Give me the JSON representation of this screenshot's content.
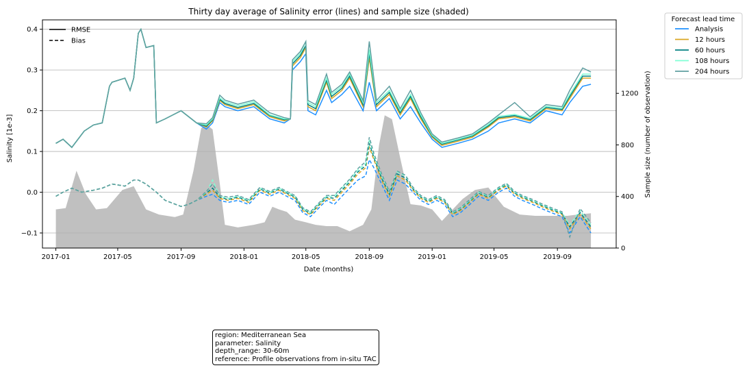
{
  "chart_data": {
    "type": "line",
    "title": "Thirty day average of Salinity error (lines) and sample size (shaded)",
    "xlabel": "Date (months)",
    "ylabel": "Salinity [1e-3]",
    "y2label": "Sample size (number of observation)",
    "xlim": [
      "2016-12-06",
      "2019-12-24"
    ],
    "ylim": [
      -0.137,
      0.423
    ],
    "y2lim": [
      0,
      1770
    ],
    "x_ticks": [
      "2017-01",
      "2017-05",
      "2017-09",
      "2018-01",
      "2018-05",
      "2018-09",
      "2019-01",
      "2019-05",
      "2019-09"
    ],
    "y_ticks": [
      -0.1,
      0.0,
      0.1,
      0.2,
      0.3,
      0.4
    ],
    "y_tick_labels": [
      "−0.1",
      "0.0",
      "0.1",
      "0.2",
      "0.3",
      "0.4"
    ],
    "y2_ticks": [
      0,
      400,
      800,
      1200
    ],
    "grid": "horizontal",
    "style_legend": {
      "placement": "top-left",
      "entries": [
        {
          "label": "RMSE",
          "dash": "solid"
        },
        {
          "label": "Bias",
          "dash": "dashed"
        }
      ]
    },
    "legend": {
      "title": "Forecast lead time",
      "placement": "outside-right",
      "entries": [
        "Analysis",
        "12 hours",
        "60 hours",
        "108 hours",
        "204 hours"
      ]
    },
    "colors": {
      "Analysis": "#1e90ff",
      "12 hours": "#daa520",
      "60 hours": "#008080",
      "108 hours": "#7fffd4",
      "204 hours": "#5f9ea0",
      "sample_fill": "#c0c0c0"
    },
    "sample_size": {
      "name": "Sample size",
      "x": [
        "2017-01-01",
        "2017-01-20",
        "2017-02-10",
        "2017-02-28",
        "2017-03-20",
        "2017-04-10",
        "2017-05-10",
        "2017-06-01",
        "2017-06-25",
        "2017-07-20",
        "2017-08-20",
        "2017-09-05",
        "2017-09-25",
        "2017-10-10",
        "2017-10-20",
        "2017-11-01",
        "2017-11-15",
        "2017-11-25",
        "2017-12-20",
        "2018-01-20",
        "2018-02-10",
        "2018-02-25",
        "2018-03-10",
        "2018-03-25",
        "2018-04-10",
        "2018-05-01",
        "2018-05-20",
        "2018-06-10",
        "2018-07-01",
        "2018-07-25",
        "2018-08-20",
        "2018-09-05",
        "2018-09-20",
        "2018-10-01",
        "2018-10-15",
        "2018-10-31",
        "2018-11-20",
        "2018-12-10",
        "2019-01-01",
        "2019-01-20",
        "2019-02-10",
        "2019-03-01",
        "2019-03-25",
        "2019-04-20",
        "2019-05-20",
        "2019-06-20",
        "2019-07-20",
        "2019-08-20",
        "2019-09-20",
        "2019-10-10",
        "2019-11-05"
      ],
      "values": [
        300,
        310,
        600,
        420,
        300,
        310,
        450,
        480,
        300,
        260,
        240,
        260,
        600,
        930,
        960,
        920,
        500,
        180,
        160,
        180,
        200,
        320,
        300,
        280,
        220,
        200,
        180,
        170,
        170,
        130,
        180,
        300,
        800,
        1030,
        1000,
        700,
        340,
        330,
        300,
        210,
        300,
        380,
        450,
        470,
        320,
        260,
        250,
        250,
        250,
        260,
        270
      ]
    },
    "rmse": {
      "x": [
        "2017-01-01",
        "2017-01-15",
        "2017-02-01",
        "2017-02-25",
        "2017-03-15",
        "2017-04-01",
        "2017-04-15",
        "2017-04-20",
        "2017-05-15",
        "2017-05-25",
        "2017-06-01",
        "2017-06-10",
        "2017-06-15",
        "2017-06-25",
        "2017-07-10",
        "2017-07-15",
        "2017-08-01",
        "2017-09-01",
        "2017-10-01",
        "2017-10-20",
        "2017-11-01",
        "2017-11-15",
        "2017-11-25",
        "2017-12-20",
        "2018-01-20",
        "2018-02-20",
        "2018-03-20",
        "2018-04-01",
        "2018-04-05",
        "2018-04-20",
        "2018-05-01",
        "2018-05-05",
        "2018-05-20",
        "2018-06-10",
        "2018-06-20",
        "2018-07-10",
        "2018-07-25",
        "2018-08-20",
        "2018-09-01",
        "2018-09-15",
        "2018-10-10",
        "2018-10-31",
        "2018-11-20",
        "2018-12-10",
        "2019-01-01",
        "2019-01-20",
        "2019-02-20",
        "2019-03-20",
        "2019-04-20",
        "2019-05-10",
        "2019-06-10",
        "2019-07-10",
        "2019-08-10",
        "2019-09-10",
        "2019-09-25",
        "2019-10-20",
        "2019-11-05"
      ],
      "series": [
        {
          "name": "Analysis",
          "values": [
            0.12,
            0.13,
            0.11,
            0.15,
            0.165,
            0.17,
            0.26,
            0.27,
            0.28,
            0.25,
            0.28,
            0.39,
            0.4,
            0.355,
            0.36,
            0.17,
            0.18,
            0.2,
            0.17,
            0.155,
            0.17,
            0.22,
            0.21,
            0.2,
            0.21,
            0.18,
            0.17,
            0.18,
            0.3,
            0.32,
            0.34,
            0.2,
            0.19,
            0.25,
            0.22,
            0.24,
            0.26,
            0.2,
            0.27,
            0.2,
            0.23,
            0.18,
            0.21,
            0.17,
            0.13,
            0.11,
            0.12,
            0.13,
            0.15,
            0.17,
            0.18,
            0.17,
            0.2,
            0.19,
            0.22,
            0.26,
            0.265
          ]
        },
        {
          "name": "12 hours",
          "values": [
            0.12,
            0.13,
            0.11,
            0.15,
            0.165,
            0.17,
            0.26,
            0.27,
            0.28,
            0.25,
            0.28,
            0.39,
            0.4,
            0.355,
            0.36,
            0.17,
            0.18,
            0.2,
            0.17,
            0.16,
            0.175,
            0.225,
            0.215,
            0.205,
            0.215,
            0.185,
            0.175,
            0.18,
            0.31,
            0.33,
            0.355,
            0.21,
            0.2,
            0.27,
            0.23,
            0.25,
            0.28,
            0.21,
            0.33,
            0.21,
            0.24,
            0.19,
            0.23,
            0.18,
            0.135,
            0.115,
            0.125,
            0.135,
            0.16,
            0.18,
            0.185,
            0.175,
            0.205,
            0.2,
            0.23,
            0.28,
            0.28
          ]
        },
        {
          "name": "60 hours",
          "values": [
            0.12,
            0.13,
            0.11,
            0.15,
            0.165,
            0.17,
            0.26,
            0.27,
            0.28,
            0.25,
            0.28,
            0.39,
            0.4,
            0.355,
            0.36,
            0.17,
            0.18,
            0.2,
            0.17,
            0.162,
            0.178,
            0.228,
            0.218,
            0.208,
            0.218,
            0.188,
            0.178,
            0.18,
            0.315,
            0.335,
            0.36,
            0.215,
            0.205,
            0.275,
            0.235,
            0.255,
            0.285,
            0.215,
            0.34,
            0.215,
            0.245,
            0.195,
            0.235,
            0.185,
            0.138,
            0.118,
            0.128,
            0.138,
            0.163,
            0.183,
            0.188,
            0.178,
            0.208,
            0.203,
            0.235,
            0.285,
            0.285
          ]
        },
        {
          "name": "108 hours",
          "values": [
            0.12,
            0.13,
            0.11,
            0.15,
            0.165,
            0.17,
            0.26,
            0.27,
            0.28,
            0.25,
            0.28,
            0.39,
            0.4,
            0.355,
            0.36,
            0.17,
            0.18,
            0.2,
            0.17,
            0.165,
            0.18,
            0.232,
            0.222,
            0.212,
            0.222,
            0.19,
            0.18,
            0.18,
            0.32,
            0.34,
            0.37,
            0.22,
            0.21,
            0.28,
            0.24,
            0.26,
            0.29,
            0.22,
            0.35,
            0.22,
            0.25,
            0.2,
            0.24,
            0.19,
            0.14,
            0.12,
            0.13,
            0.14,
            0.166,
            0.186,
            0.191,
            0.181,
            0.211,
            0.206,
            0.24,
            0.29,
            0.29
          ]
        },
        {
          "name": "204 hours",
          "values": [
            0.12,
            0.13,
            0.11,
            0.15,
            0.165,
            0.17,
            0.26,
            0.27,
            0.28,
            0.25,
            0.28,
            0.39,
            0.4,
            0.355,
            0.36,
            0.17,
            0.18,
            0.2,
            0.17,
            0.168,
            0.183,
            0.238,
            0.226,
            0.216,
            0.226,
            0.195,
            0.183,
            0.18,
            0.325,
            0.345,
            0.37,
            0.225,
            0.215,
            0.29,
            0.245,
            0.265,
            0.295,
            0.225,
            0.37,
            0.225,
            0.26,
            0.205,
            0.25,
            0.195,
            0.143,
            0.123,
            0.133,
            0.143,
            0.17,
            0.19,
            0.22,
            0.185,
            0.215,
            0.21,
            0.25,
            0.305,
            0.295
          ]
        }
      ]
    },
    "bias": {
      "x": [
        "2017-01-01",
        "2017-01-15",
        "2017-02-01",
        "2017-02-20",
        "2017-03-15",
        "2017-04-01",
        "2017-04-20",
        "2017-05-15",
        "2017-06-01",
        "2017-06-10",
        "2017-06-25",
        "2017-07-15",
        "2017-08-01",
        "2017-09-01",
        "2017-09-15",
        "2017-10-01",
        "2017-10-20",
        "2017-11-01",
        "2017-11-15",
        "2017-12-01",
        "2017-12-20",
        "2018-01-10",
        "2018-02-01",
        "2018-02-20",
        "2018-03-10",
        "2018-03-25",
        "2018-04-10",
        "2018-04-25",
        "2018-05-10",
        "2018-05-25",
        "2018-06-10",
        "2018-06-25",
        "2018-07-10",
        "2018-07-25",
        "2018-08-10",
        "2018-08-25",
        "2018-09-01",
        "2018-09-10",
        "2018-09-25",
        "2018-10-10",
        "2018-10-25",
        "2018-11-10",
        "2018-11-25",
        "2018-12-10",
        "2018-12-25",
        "2019-01-10",
        "2019-01-25",
        "2019-02-10",
        "2019-02-25",
        "2019-03-15",
        "2019-04-01",
        "2019-04-20",
        "2019-05-10",
        "2019-05-25",
        "2019-06-10",
        "2019-06-25",
        "2019-07-15",
        "2019-08-01",
        "2019-08-20",
        "2019-09-10",
        "2019-09-25",
        "2019-10-15",
        "2019-11-05"
      ],
      "series": [
        {
          "name": "Analysis",
          "values": [
            -0.01,
            0.0,
            0.01,
            0.0,
            0.005,
            0.01,
            0.02,
            0.015,
            0.03,
            0.03,
            0.02,
            0.0,
            -0.02,
            -0.035,
            -0.03,
            -0.02,
            -0.01,
            -0.005,
            -0.02,
            -0.025,
            -0.02,
            -0.03,
            0.0,
            -0.01,
            0.0,
            -0.01,
            -0.02,
            -0.05,
            -0.06,
            -0.04,
            -0.02,
            -0.03,
            -0.01,
            0.01,
            0.03,
            0.04,
            0.08,
            0.06,
            0.02,
            -0.02,
            0.03,
            0.02,
            0.0,
            -0.02,
            -0.03,
            -0.02,
            -0.03,
            -0.06,
            -0.05,
            -0.03,
            -0.01,
            -0.02,
            0.0,
            0.01,
            -0.01,
            -0.02,
            -0.03,
            -0.04,
            -0.05,
            -0.06,
            -0.1,
            -0.06,
            -0.1
          ]
        },
        {
          "name": "12 hours",
          "values": [
            -0.01,
            0.0,
            0.01,
            0.0,
            0.005,
            0.01,
            0.02,
            0.015,
            0.03,
            0.03,
            0.02,
            0.0,
            -0.02,
            -0.035,
            -0.03,
            -0.02,
            -0.005,
            0.005,
            -0.015,
            -0.02,
            -0.015,
            -0.025,
            0.005,
            -0.005,
            0.005,
            -0.005,
            -0.015,
            -0.045,
            -0.055,
            -0.035,
            -0.015,
            -0.02,
            0.0,
            0.02,
            0.045,
            0.06,
            0.11,
            0.08,
            0.03,
            -0.01,
            0.04,
            0.03,
            0.005,
            -0.015,
            -0.025,
            -0.015,
            -0.025,
            -0.055,
            -0.045,
            -0.025,
            -0.005,
            -0.015,
            0.005,
            0.015,
            -0.005,
            -0.015,
            -0.025,
            -0.035,
            -0.045,
            -0.055,
            -0.09,
            -0.055,
            -0.09
          ]
        },
        {
          "name": "60 hours",
          "values": [
            -0.01,
            0.0,
            0.01,
            0.0,
            0.005,
            0.01,
            0.02,
            0.015,
            0.03,
            0.03,
            0.02,
            0.0,
            -0.02,
            -0.035,
            -0.03,
            -0.02,
            -0.002,
            0.01,
            -0.012,
            -0.018,
            -0.012,
            -0.022,
            0.008,
            -0.002,
            0.008,
            -0.002,
            -0.012,
            -0.042,
            -0.052,
            -0.032,
            -0.012,
            -0.015,
            0.005,
            0.025,
            0.05,
            0.065,
            0.12,
            0.085,
            0.035,
            -0.005,
            0.045,
            0.035,
            0.008,
            -0.012,
            -0.022,
            -0.012,
            -0.022,
            -0.052,
            -0.042,
            -0.022,
            -0.002,
            -0.012,
            0.008,
            0.018,
            -0.002,
            -0.012,
            -0.022,
            -0.032,
            -0.042,
            -0.052,
            -0.085,
            -0.05,
            -0.085
          ]
        },
        {
          "name": "108 hours",
          "values": [
            -0.01,
            0.0,
            0.01,
            0.0,
            0.005,
            0.01,
            0.02,
            0.015,
            0.03,
            0.03,
            0.02,
            0.0,
            -0.02,
            -0.035,
            -0.03,
            -0.02,
            0.0,
            0.03,
            -0.01,
            -0.015,
            -0.01,
            -0.02,
            0.01,
            0.0,
            0.01,
            0.0,
            -0.01,
            -0.04,
            -0.05,
            -0.03,
            -0.01,
            -0.01,
            0.01,
            0.03,
            0.055,
            0.07,
            0.13,
            0.09,
            0.04,
            0.0,
            0.05,
            0.04,
            0.01,
            -0.01,
            -0.02,
            -0.01,
            -0.02,
            -0.05,
            -0.04,
            -0.02,
            0.0,
            -0.01,
            0.01,
            0.02,
            0.0,
            -0.01,
            -0.02,
            -0.03,
            -0.04,
            -0.05,
            -0.08,
            -0.045,
            -0.08
          ]
        },
        {
          "name": "204 hours",
          "values": [
            -0.01,
            0.0,
            0.01,
            0.0,
            0.005,
            0.01,
            0.02,
            0.015,
            0.03,
            0.03,
            0.02,
            0.0,
            -0.02,
            -0.035,
            -0.03,
            -0.02,
            0.002,
            0.02,
            -0.008,
            -0.012,
            -0.008,
            -0.018,
            0.012,
            0.002,
            0.012,
            0.002,
            -0.008,
            -0.038,
            -0.048,
            -0.028,
            -0.008,
            -0.008,
            0.012,
            0.032,
            0.058,
            0.075,
            0.135,
            0.095,
            0.045,
            0.002,
            0.052,
            0.042,
            0.012,
            -0.008,
            -0.018,
            -0.008,
            -0.018,
            -0.048,
            -0.038,
            -0.018,
            0.002,
            -0.008,
            0.012,
            0.022,
            0.002,
            -0.008,
            -0.018,
            -0.028,
            -0.038,
            -0.048,
            -0.11,
            -0.04,
            -0.075
          ]
        }
      ]
    }
  },
  "info_box": {
    "region": "region: Mediterranean Sea",
    "parameter": "parameter: Salinity",
    "depth_range": "depth_range: 30-60m",
    "reference": "reference: Profile observations from in-situ TAC"
  }
}
